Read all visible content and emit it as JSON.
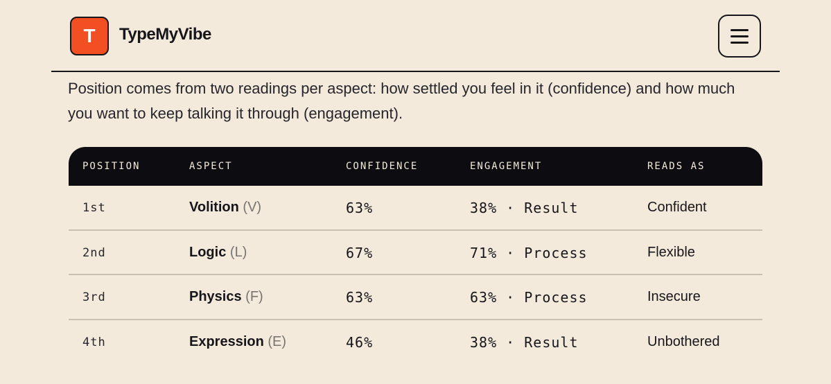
{
  "header": {
    "logo_letter": "T",
    "brand": "TypeMyVibe",
    "menu_icon": "hamburger-menu-icon"
  },
  "intro": "Position comes from two readings per aspect: how settled you feel in it (confidence) and how much you want to keep talking it through (engagement).",
  "table": {
    "columns": [
      "POSITION",
      "ASPECT",
      "CONFIDENCE",
      "ENGAGEMENT",
      "READS AS"
    ],
    "rows": [
      {
        "position": "1st",
        "aspect": "Volition",
        "code": "(V)",
        "confidence": "63%",
        "engagement": "38% · Result",
        "reads_as": "Confident"
      },
      {
        "position": "2nd",
        "aspect": "Logic",
        "code": "(L)",
        "confidence": "67%",
        "engagement": "71% · Process",
        "reads_as": "Flexible"
      },
      {
        "position": "3rd",
        "aspect": "Physics",
        "code": "(F)",
        "confidence": "63%",
        "engagement": "63% · Process",
        "reads_as": "Insecure"
      },
      {
        "position": "4th",
        "aspect": "Expression",
        "code": "(E)",
        "confidence": "46%",
        "engagement": "38% · Result",
        "reads_as": "Unbothered"
      }
    ]
  },
  "colors": {
    "background": "#f3eadb",
    "accent": "#f25022",
    "header_bg": "#0d0c10"
  }
}
